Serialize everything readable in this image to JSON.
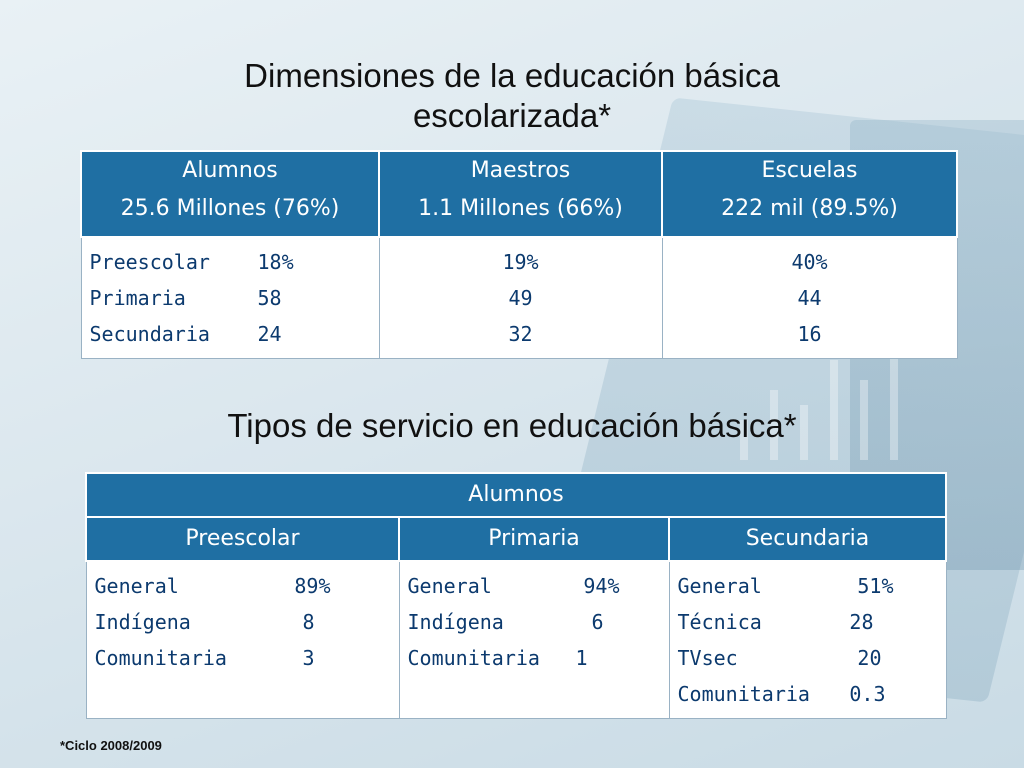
{
  "title1": "Dimensiones de la educación básica escolarizada*",
  "title2": "Tipos de servicio en educación básica*",
  "table1": {
    "columns": [
      {
        "label": "Alumnos",
        "number": "25.6",
        "detail": " Millones (76%)"
      },
      {
        "label": "Maestros",
        "number": "1.1",
        "detail": " Millones (66%)"
      },
      {
        "label": "Escuelas",
        "number": "222",
        "detail": " mil (89.5%)"
      }
    ],
    "row_labels": [
      "Preescolar",
      "Primaria",
      "Secundaria"
    ],
    "alumnos": [
      "18%",
      "58",
      "24"
    ],
    "maestros": [
      "19%",
      "49",
      "32"
    ],
    "escuelas": [
      "40%",
      "44",
      "16"
    ]
  },
  "table2": {
    "header": "Alumnos",
    "columns": [
      {
        "label": "Preescolar",
        "rows": [
          [
            "General",
            "89%"
          ],
          [
            "Indígena",
            "8"
          ],
          [
            "Comunitaria",
            "3"
          ]
        ]
      },
      {
        "label": "Primaria",
        "rows": [
          [
            "General",
            "94%"
          ],
          [
            "Indígena",
            "6"
          ],
          [
            "Comunitaria",
            "1"
          ]
        ]
      },
      {
        "label": "Secundaria",
        "rows": [
          [
            "General",
            "51%"
          ],
          [
            "Técnica",
            "28"
          ],
          [
            "TVsec",
            "20"
          ],
          [
            "Comunitaria",
            "0.3"
          ]
        ]
      }
    ]
  },
  "footnote": "*Ciclo 2008/2009"
}
